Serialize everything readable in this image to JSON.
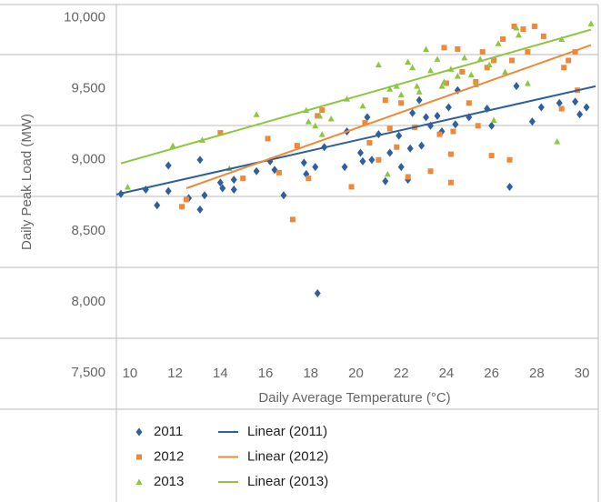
{
  "chart_data": {
    "type": "scatter",
    "xlabel": "Daily Average Temperature (°C)",
    "ylabel": "Daily Peak Load (MW)",
    "xlim": [
      9.4,
      30.6
    ],
    "ylim": [
      7500,
      10100
    ],
    "xticks": [
      10,
      12,
      14,
      16,
      18,
      20,
      22,
      24,
      26,
      28,
      30
    ],
    "yticks": [
      {
        "value": 7500,
        "label": "7,500"
      },
      {
        "value": 8000,
        "label": "8,000"
      },
      {
        "value": 8500,
        "label": "8,500"
      },
      {
        "value": 9000,
        "label": "9,000"
      },
      {
        "value": 9500,
        "label": "9,500"
      },
      {
        "value": 10000,
        "label": "10,000"
      }
    ],
    "series": [
      {
        "name": "2011",
        "mode": "markers",
        "marker": "diamond",
        "color": "#2e5f9e",
        "x": [
          9.6,
          10.7,
          11.2,
          11.7,
          11.7,
          12.6,
          13.1,
          13.1,
          13.3,
          14.0,
          14.1,
          14.6,
          14.6,
          15.6,
          16.2,
          16.4,
          16.8,
          17.7,
          17.8,
          18.2,
          18.3,
          18.6,
          19.5,
          19.6,
          20.2,
          20.3,
          20.5,
          20.7,
          21.0,
          21.3,
          21.5,
          21.9,
          22.0,
          22.3,
          22.4,
          22.5,
          22.9,
          23.1,
          23.3,
          23.6,
          23.8,
          24.1,
          24.4,
          24.5,
          25.8,
          26.8,
          27.8,
          28.2,
          29.0,
          29.7,
          29.9,
          30.2,
          27.1,
          25.0,
          22.8,
          26.0
        ],
        "values": [
          8760,
          8790,
          8680,
          8780,
          8960,
          8730,
          8650,
          9000,
          8750,
          8840,
          8800,
          8790,
          8860,
          8920,
          8990,
          8930,
          8750,
          8980,
          8900,
          8950,
          8060,
          9090,
          8950,
          9200,
          9050,
          8990,
          9300,
          9000,
          9180,
          8850,
          9050,
          9170,
          8950,
          8860,
          9080,
          9330,
          9100,
          9300,
          9240,
          9310,
          9200,
          9370,
          9250,
          9490,
          9360,
          8810,
          9270,
          9370,
          9400,
          9410,
          9320,
          9370,
          9520,
          9300,
          9420,
          9240
        ]
      },
      {
        "name": "2012",
        "mode": "markers",
        "marker": "square",
        "color": "#f0883a",
        "x": [
          12.3,
          12.5,
          14.0,
          15.0,
          16.1,
          16.6,
          17.2,
          17.4,
          17.9,
          18.3,
          18.5,
          19.8,
          20.4,
          20.6,
          21.0,
          21.5,
          21.8,
          22.0,
          22.3,
          22.6,
          23.3,
          23.7,
          24.2,
          24.2,
          24.3,
          24.5,
          24.7,
          25.0,
          25.3,
          25.4,
          25.6,
          25.8,
          26.0,
          26.1,
          26.5,
          26.8,
          27.0,
          27.4,
          27.6,
          27.9,
          28.3,
          29.1,
          29.2,
          29.4,
          29.7,
          29.8,
          24.0,
          21.3,
          23.9,
          26.9
        ],
        "values": [
          8670,
          8720,
          9190,
          8870,
          9150,
          8910,
          8580,
          9100,
          8870,
          9310,
          9350,
          8810,
          9260,
          9120,
          9000,
          9220,
          9090,
          9400,
          8880,
          9230,
          8920,
          9180,
          9040,
          8840,
          9200,
          9780,
          9620,
          9400,
          9550,
          9240,
          9760,
          9650,
          9030,
          9700,
          9850,
          9000,
          9940,
          9920,
          9760,
          9940,
          9870,
          9360,
          9650,
          9700,
          9760,
          9490,
          9540,
          9420,
          9790,
          9700
        ]
      },
      {
        "name": "2013",
        "mode": "markers",
        "marker": "triangle",
        "color": "#8dc641",
        "x": [
          9.9,
          11.9,
          13.2,
          14.4,
          15.6,
          17.8,
          17.9,
          18.2,
          18.4,
          18.5,
          18.9,
          20.3,
          21.0,
          21.4,
          21.5,
          21.8,
          22.0,
          22.3,
          22.5,
          22.8,
          23.1,
          23.3,
          23.6,
          23.9,
          24.2,
          24.5,
          24.8,
          25.1,
          25.3,
          25.5,
          25.9,
          26.3,
          26.6,
          27.1,
          27.2,
          27.6,
          28.9,
          30.4,
          19.6,
          23.8,
          22.7,
          26.1,
          29.1
        ],
        "values": [
          8810,
          9100,
          9140,
          8940,
          9320,
          9350,
          9270,
          9240,
          9310,
          9180,
          9290,
          9380,
          9670,
          8900,
          9500,
          9520,
          9460,
          9690,
          9650,
          9480,
          9780,
          9630,
          9710,
          9550,
          9640,
          9590,
          9720,
          9600,
          9530,
          9710,
          9670,
          9820,
          9620,
          9930,
          9880,
          9540,
          9130,
          9960,
          9430,
          9520,
          9520,
          9280,
          9850
        ]
      },
      {
        "name": "Linear (2011)",
        "mode": "line",
        "color": "#2e5f9e",
        "x": [
          9.4,
          30.6
        ],
        "values": [
          8756,
          9518
        ]
      },
      {
        "name": "Linear (2012)",
        "mode": "line",
        "color": "#f0883a",
        "x": [
          12.5,
          30.4
        ],
        "values": [
          8800,
          9808
        ]
      },
      {
        "name": "Linear (2013)",
        "mode": "line",
        "color": "#8dc641",
        "x": [
          9.6,
          30.4
        ],
        "values": [
          8975,
          9917
        ]
      }
    ]
  }
}
